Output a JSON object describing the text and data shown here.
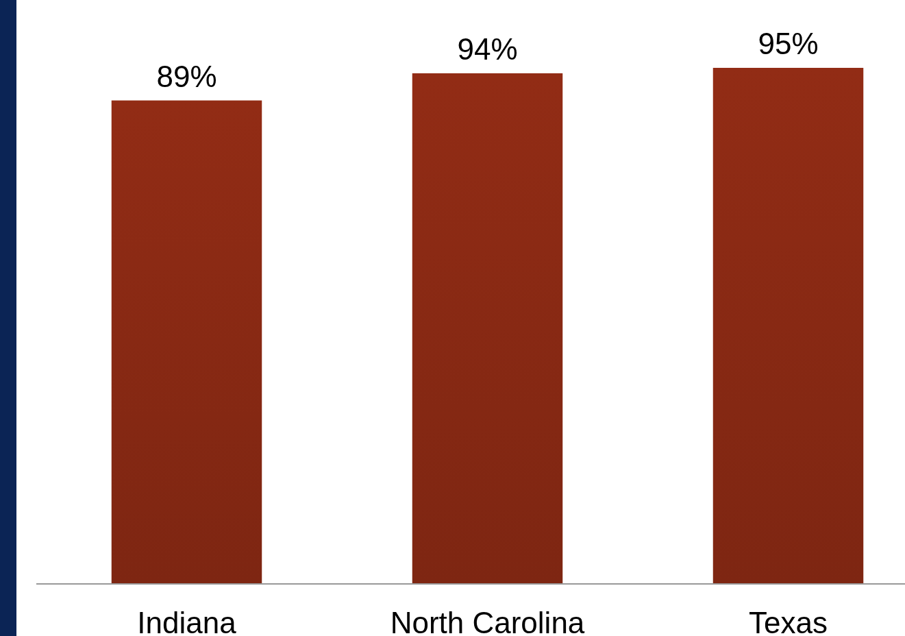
{
  "chart_data": {
    "type": "bar",
    "categories": [
      "Indiana",
      "North Carolina",
      "Texas"
    ],
    "values": [
      89,
      94,
      95
    ],
    "value_labels": [
      "89%",
      "94%",
      "95%"
    ],
    "color": "#8a2a14",
    "tick_labels": "x"
  }
}
